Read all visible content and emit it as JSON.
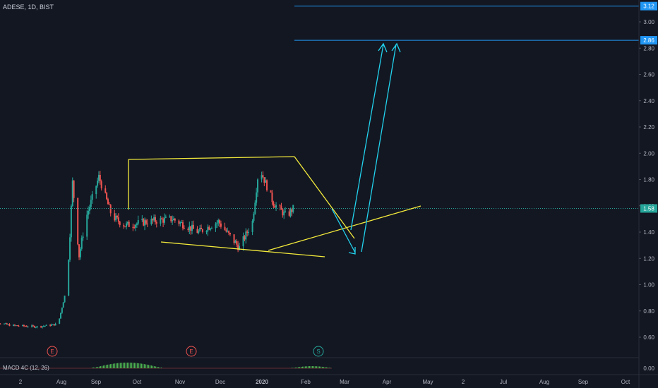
{
  "header": {
    "symbol": "ADESE, 1D, BIST"
  },
  "indicator": {
    "label": "MACD 4C (12, 26)",
    "zero_label": "0.00"
  },
  "colors": {
    "background": "#131722",
    "up": "#26a69a",
    "down": "#ef5350",
    "trendline": "#f4eb3b",
    "arrow": "#22d3ee",
    "hline": "#2196f3",
    "last_price_line": "#26a69a",
    "axis_text": "#b2b5be",
    "event_e": "#ef5350",
    "event_s": "#26a69a",
    "macd_hist": "#4caf50"
  },
  "chart_data": {
    "type": "candlestick",
    "title": "ADESE, 1D, BIST",
    "x_ticks": [
      "2",
      "Aug",
      "Sep",
      "Oct",
      "Nov",
      "Dec",
      "2020",
      "Feb",
      "Mar",
      "Apr",
      "May",
      "2",
      "Jul",
      "Aug",
      "Sep",
      "Oct"
    ],
    "y_ticks": [
      "0.60",
      "0.80",
      "1.00",
      "1.20",
      "1.40",
      "1.60",
      "1.80",
      "2.00",
      "2.20",
      "2.40",
      "2.60",
      "2.80",
      "3.00"
    ],
    "y_range": [
      0.5,
      3.15
    ],
    "price_labels": [
      {
        "text": "3.12",
        "value": 3.12
      },
      {
        "text": "2.86",
        "value": 2.86
      },
      {
        "text": "1.58",
        "value": 1.58
      }
    ],
    "horizontal_lines": [
      3.12,
      2.86
    ],
    "last_price": 1.58,
    "event_markers": [
      "E",
      "E",
      "S"
    ],
    "macd_zero": "0.00",
    "price_path": [
      [
        "Jul 1",
        0.73
      ],
      [
        "Jul 20",
        0.69
      ],
      [
        "Aug 10",
        0.68
      ],
      [
        "Aug 25",
        0.7
      ],
      [
        "Sep 1",
        1.0
      ],
      [
        "Sep 5",
        1.78
      ],
      [
        "Sep 10",
        1.22
      ],
      [
        "Sep 15",
        1.5
      ],
      [
        "Sep 25",
        1.82
      ],
      [
        "Oct 5",
        1.52
      ],
      [
        "Oct 15",
        1.45
      ],
      [
        "Nov 1",
        1.48
      ],
      [
        "Nov 20",
        1.5
      ],
      [
        "Dec 10",
        1.4
      ],
      [
        "Dec 25",
        1.48
      ],
      [
        "Jan 10",
        1.28
      ],
      [
        "Jan 20",
        1.48
      ],
      [
        "Jan 25",
        1.9
      ],
      [
        "Feb 5",
        1.62
      ],
      [
        "Feb 15",
        1.52
      ],
      [
        "Feb 20",
        1.58
      ]
    ]
  }
}
